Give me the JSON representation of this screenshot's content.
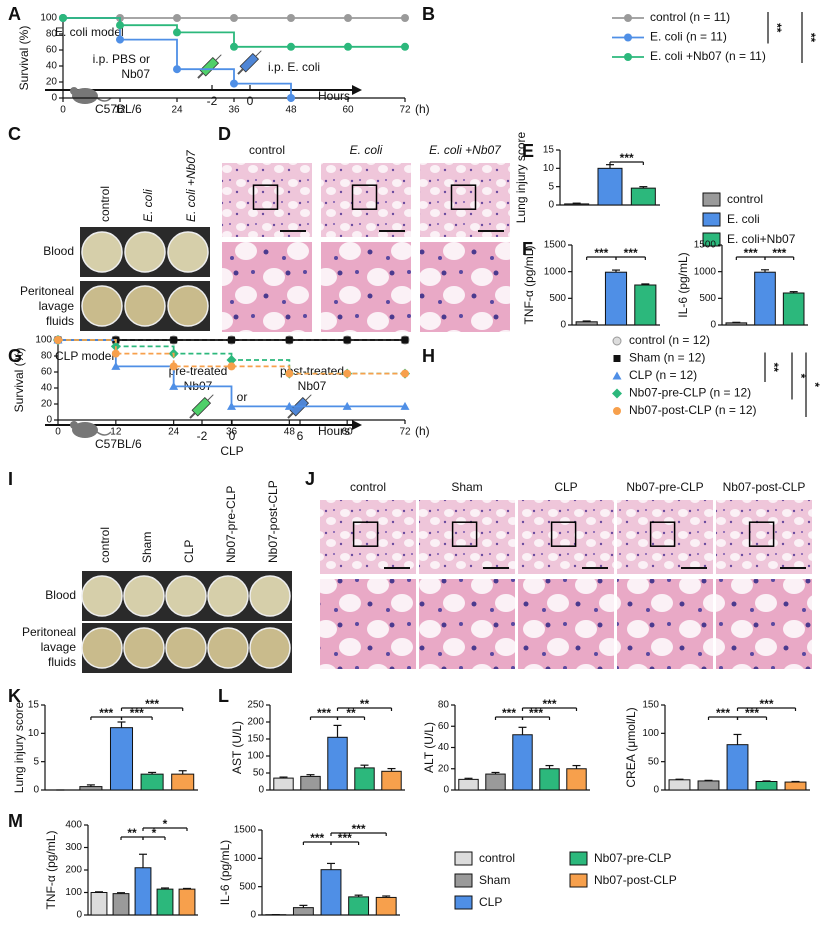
{
  "panel_letters": [
    "A",
    "B",
    "C",
    "D",
    "E",
    "F",
    "G",
    "H",
    "I",
    "J",
    "K",
    "L",
    "M"
  ],
  "panel_a": {
    "title": "E. coli model",
    "drug": [
      "i.p. PBS or",
      "Nb07"
    ],
    "inject": "i.p. E. coli",
    "ticks": [
      "-2",
      "0"
    ],
    "axis": "Hours",
    "mouse": "C57BL/6"
  },
  "panel_c": {
    "columns": [
      "control",
      "E. coli",
      "E. coli +Nb07"
    ],
    "rows": [
      [
        "Blood"
      ],
      [
        "Peritoneal",
        "lavage",
        "fluids"
      ]
    ]
  },
  "panel_d": {
    "columns": [
      "control",
      "E. coli",
      "E. coli +Nb07"
    ]
  },
  "legend_e": [
    {
      "name": "control",
      "color": "#9a9a9a"
    },
    {
      "name": "E. coli",
      "color": "#4f8fe6"
    },
    {
      "name": "E. coli+Nb07",
      "color": "#2cb87c"
    }
  ],
  "panel_g": {
    "title": "CLP model",
    "pre": [
      "pre-treated",
      "Nb07"
    ],
    "or": "or",
    "post": [
      "post-treated",
      "Nb07"
    ],
    "ticks": [
      "-2",
      "0",
      "6"
    ],
    "event": "CLP",
    "axis": "Hours",
    "mouse": "C57BL/6"
  },
  "panel_i": {
    "columns": [
      "control",
      "Sham",
      "CLP",
      "Nb07-pre-CLP",
      "Nb07-post-CLP"
    ],
    "rows": [
      [
        "Blood"
      ],
      [
        "Peritoneal",
        "lavage",
        "fluids"
      ]
    ]
  },
  "panel_j": {
    "columns": [
      "control",
      "Sham",
      "CLP",
      "Nb07-pre-CLP",
      "Nb07-post-CLP"
    ]
  },
  "legend_m": [
    {
      "name": "control",
      "color": "#dcdcdc"
    },
    {
      "name": "Sham",
      "color": "#9a9a9a"
    },
    {
      "name": "CLP",
      "color": "#4f8fe6"
    },
    {
      "name": "Nb07-pre-CLP",
      "color": "#2cb87c"
    },
    {
      "name": "Nb07-post-CLP",
      "color": "#f7a04c"
    }
  ],
  "chart_data": [
    {
      "type": "line",
      "ylabel": "Survival (%)",
      "xunit": "(h)",
      "x": [
        0,
        12,
        24,
        36,
        48,
        60,
        72
      ],
      "xlim": [
        0,
        72
      ],
      "xticks": [
        0,
        12,
        24,
        36,
        48,
        60,
        72
      ],
      "ylim": [
        0,
        100
      ],
      "yticks": [
        0,
        20,
        40,
        60,
        80,
        100
      ],
      "series": [
        {
          "name": "control (n = 11)",
          "color": "#9a9a9a",
          "marker": "circle",
          "values": [
            100,
            100,
            100,
            100,
            100,
            100,
            100
          ]
        },
        {
          "name": "E. coli (n = 11)",
          "color": "#4f8fe6",
          "marker": "circle",
          "values": [
            100,
            73,
            36,
            18,
            0,
            null,
            null
          ]
        },
        {
          "name": "E. coli +Nb07 (n = 11)",
          "color": "#2cb87c",
          "marker": "circle",
          "values": [
            100,
            91,
            82,
            64,
            64,
            64,
            64
          ]
        }
      ],
      "annotations": [
        "**",
        "**"
      ]
    },
    {
      "type": "bar",
      "ylabel": "Lung injury score",
      "ylim": [
        0,
        15
      ],
      "yticks": [
        0,
        5,
        10,
        15
      ],
      "values": [
        0.3,
        10,
        4.6
      ],
      "errors": [
        0.2,
        1,
        0.4
      ],
      "colors": [
        "#9a9a9a",
        "#4f8fe6",
        "#2cb87c"
      ],
      "annotations": [
        "***"
      ]
    },
    {
      "type": "bar",
      "ylabel": "TNF-α (pg/mL)",
      "ylim": [
        0,
        1500
      ],
      "yticks": [
        0,
        500,
        1000,
        1500
      ],
      "values": [
        60,
        990,
        750
      ],
      "errors": [
        15,
        40,
        20
      ],
      "colors": [
        "#9a9a9a",
        "#4f8fe6",
        "#2cb87c"
      ],
      "annotations": [
        "***",
        "***"
      ]
    },
    {
      "type": "bar",
      "ylabel": "IL-6 (pg/mL)",
      "ylim": [
        0,
        1500
      ],
      "yticks": [
        0,
        500,
        1000,
        1500
      ],
      "values": [
        40,
        990,
        600
      ],
      "errors": [
        10,
        45,
        25
      ],
      "colors": [
        "#9a9a9a",
        "#4f8fe6",
        "#2cb87c"
      ],
      "annotations": [
        "***",
        "***"
      ]
    },
    {
      "type": "line",
      "ylabel": "Survival (%)",
      "xunit": "(h)",
      "x": [
        0,
        12,
        24,
        36,
        48,
        60,
        72
      ],
      "xlim": [
        0,
        72
      ],
      "xticks": [
        0,
        12,
        24,
        36,
        48,
        60,
        72
      ],
      "ylim": [
        0,
        100
      ],
      "yticks": [
        0,
        20,
        40,
        60,
        80,
        100
      ],
      "series": [
        {
          "name": "control (n = 12)",
          "color": "#222222",
          "marker": "halfcircle",
          "dashed": true,
          "values": [
            100,
            100,
            100,
            100,
            100,
            100,
            100
          ]
        },
        {
          "name": "Sham (n = 12)",
          "color": "#111111",
          "marker": "square",
          "values": [
            100,
            100,
            100,
            100,
            100,
            100,
            100
          ]
        },
        {
          "name": "CLP (n = 12)",
          "color": "#4f8fe6",
          "marker": "triangle",
          "values": [
            100,
            67,
            42,
            17,
            17,
            17,
            17
          ]
        },
        {
          "name": "Nb07-pre-CLP (n = 12)",
          "color": "#2cb87c",
          "marker": "diamond",
          "dashed": true,
          "values": [
            100,
            92,
            83,
            75,
            58,
            58,
            58
          ]
        },
        {
          "name": "Nb07-post-CLP (n = 12)",
          "color": "#f7a04c",
          "marker": "circle",
          "dashed": true,
          "values": [
            100,
            83,
            67,
            67,
            58,
            58,
            58
          ]
        }
      ],
      "annotations": [
        "**",
        "*",
        "*"
      ]
    },
    {
      "type": "bar",
      "ylabel": "Lung injury score",
      "ylim": [
        0,
        15
      ],
      "yticks": [
        0,
        5,
        10,
        15
      ],
      "values": [
        0,
        0.6,
        11,
        2.8,
        2.8
      ],
      "errors": [
        0,
        0.3,
        1,
        0.3,
        0.6
      ],
      "colors": [
        "#dcdcdc",
        "#9a9a9a",
        "#4f8fe6",
        "#2cb87c",
        "#f7a04c"
      ],
      "annotations": [
        "***",
        "***",
        "***"
      ]
    },
    {
      "type": "bar",
      "ylabel": "AST (U/L)",
      "ylim": [
        0,
        250
      ],
      "yticks": [
        0,
        50,
        100,
        150,
        200,
        250
      ],
      "values": [
        35,
        40,
        155,
        65,
        55
      ],
      "errors": [
        3,
        5,
        35,
        8,
        8
      ],
      "colors": [
        "#dcdcdc",
        "#9a9a9a",
        "#4f8fe6",
        "#2cb87c",
        "#f7a04c"
      ],
      "annotations": [
        "***",
        "**",
        "**"
      ]
    },
    {
      "type": "bar",
      "ylabel": "ALT (U/L)",
      "ylim": [
        0,
        80
      ],
      "yticks": [
        0,
        20,
        40,
        60,
        80
      ],
      "values": [
        10,
        15,
        52,
        20,
        20
      ],
      "errors": [
        1,
        1.5,
        7,
        3,
        3
      ],
      "colors": [
        "#dcdcdc",
        "#9a9a9a",
        "#4f8fe6",
        "#2cb87c",
        "#f7a04c"
      ],
      "annotations": [
        "***",
        "***",
        "***"
      ]
    },
    {
      "type": "bar",
      "ylabel": "CREA (μmol/L)",
      "ylim": [
        0,
        150
      ],
      "yticks": [
        0,
        50,
        100,
        150
      ],
      "values": [
        18,
        16,
        80,
        15,
        14
      ],
      "errors": [
        1,
        1,
        18,
        1,
        1
      ],
      "colors": [
        "#dcdcdc",
        "#9a9a9a",
        "#4f8fe6",
        "#2cb87c",
        "#f7a04c"
      ],
      "annotations": [
        "***",
        "***",
        "***"
      ]
    },
    {
      "type": "bar",
      "ylabel": "TNF-α (pg/mL)",
      "ylim": [
        0,
        400
      ],
      "yticks": [
        0,
        100,
        200,
        300,
        400
      ],
      "values": [
        100,
        95,
        210,
        115,
        115
      ],
      "errors": [
        3,
        4,
        60,
        5,
        3
      ],
      "colors": [
        "#dcdcdc",
        "#9a9a9a",
        "#4f8fe6",
        "#2cb87c",
        "#f7a04c"
      ],
      "annotations": [
        "**",
        "*",
        "*"
      ]
    },
    {
      "type": "bar",
      "ylabel": "IL-6 (pg/mL)",
      "ylim": [
        0,
        1500
      ],
      "yticks": [
        0,
        500,
        1000,
        1500
      ],
      "values": [
        5,
        130,
        800,
        320,
        310
      ],
      "errors": [
        2,
        40,
        110,
        30,
        25
      ],
      "colors": [
        "#dcdcdc",
        "#9a9a9a",
        "#4f8fe6",
        "#2cb87c",
        "#f7a04c"
      ],
      "annotations": [
        "***",
        "***",
        "***"
      ]
    }
  ]
}
